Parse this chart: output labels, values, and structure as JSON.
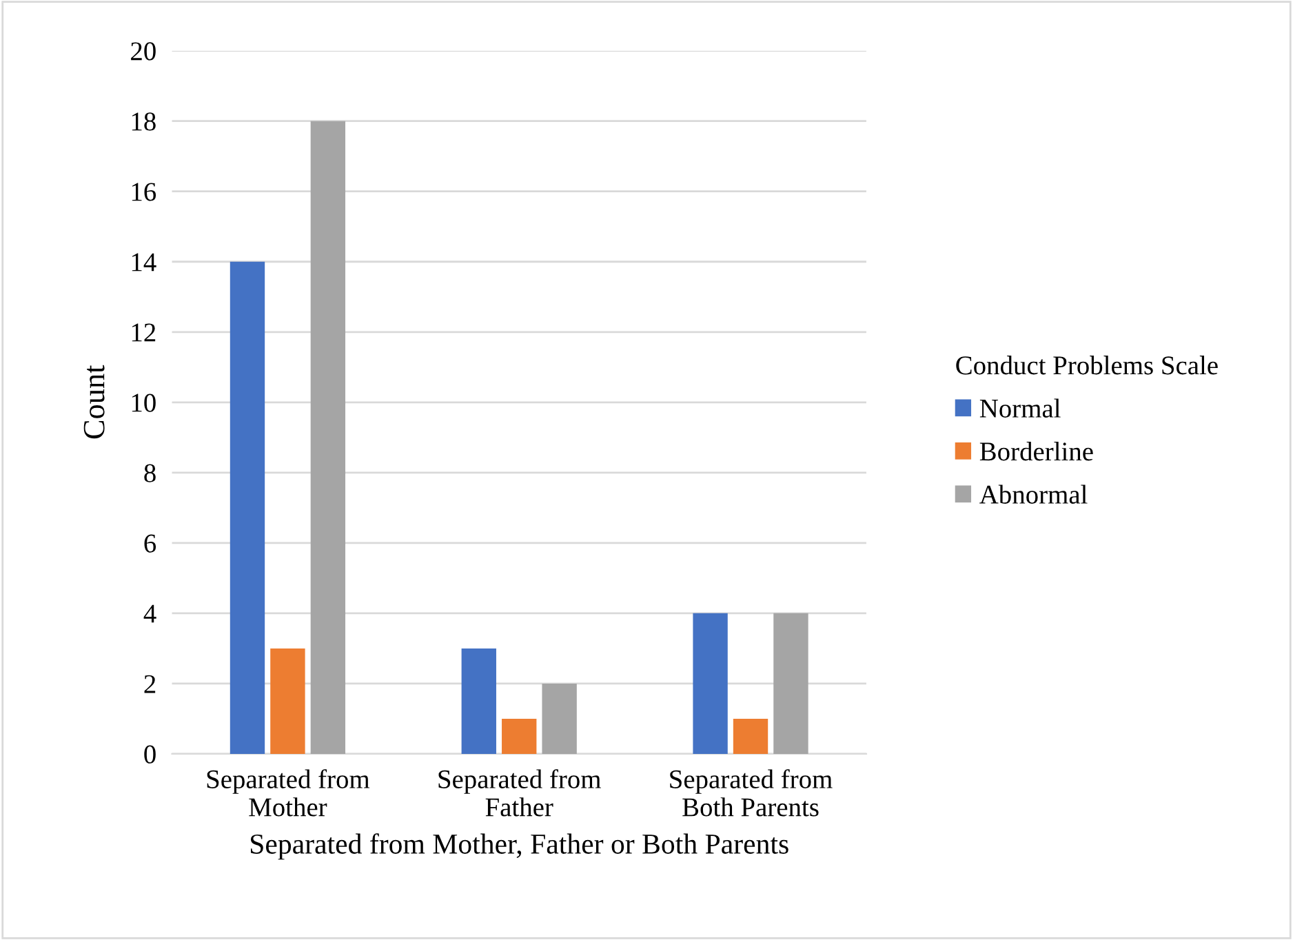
{
  "chart_data": {
    "type": "bar",
    "xlabel": "Separated from Mother, Father or Both Parents",
    "ylabel": "Count",
    "legend_title": "Conduct Problems Scale",
    "categories": [
      "Separated from Mother",
      "Separated from Father",
      "Separated from Both Parents"
    ],
    "series": [
      {
        "name": "Normal",
        "color": "#4472c4",
        "values": [
          14,
          3,
          4
        ]
      },
      {
        "name": "Borderline",
        "color": "#ed7d31",
        "values": [
          3,
          1,
          1
        ]
      },
      {
        "name": "Abnormal",
        "color": "#a5a5a5",
        "values": [
          18,
          2,
          4
        ]
      }
    ],
    "ylim": [
      0,
      20
    ],
    "yticks": [
      0,
      2,
      4,
      6,
      8,
      10,
      12,
      14,
      16,
      18,
      20
    ],
    "grid": "y",
    "legend": "right"
  }
}
